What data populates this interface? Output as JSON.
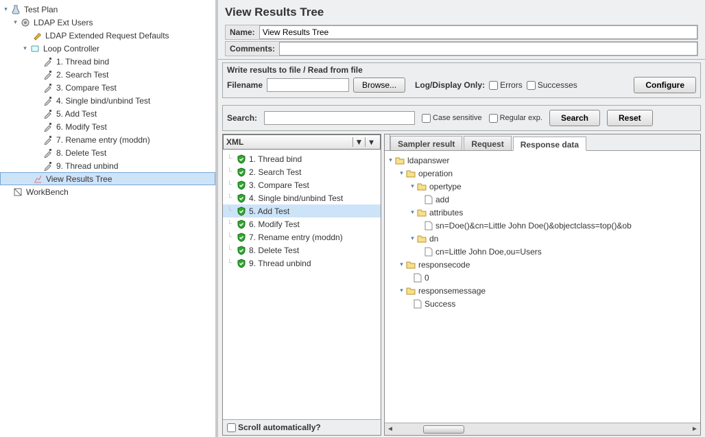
{
  "colors": {
    "select_bg": "#cde3f8",
    "border": "#a8a8a8",
    "panel_bg": "#eceef0",
    "shield_green": "#2faa2f"
  },
  "left_tree": {
    "root": "Test Plan",
    "ldap_ext": "LDAP Ext Users",
    "ldap_defaults": "LDAP Extended Request Defaults",
    "loop": "Loop Controller",
    "items": [
      "1. Thread bind",
      "2. Search Test",
      "3. Compare Test",
      "4. Single bind/unbind Test",
      "5. Add Test",
      "6. Modify Test",
      "7. Rename entry (moddn)",
      "8. Delete Test",
      "9. Thread unbind"
    ],
    "view_results": "View Results Tree",
    "workbench": "WorkBench"
  },
  "right": {
    "title": "View Results Tree",
    "name_label": "Name:",
    "name_value": "View Results Tree",
    "comments_label": "Comments:",
    "file_group_title": "Write results to file / Read from file",
    "filename_label": "Filename",
    "browse_btn": "Browse...",
    "log_display_label": "Log/Display Only:",
    "errors_chk": "Errors",
    "successes_chk": "Successes",
    "configure_btn": "Configure",
    "search_label": "Search:",
    "case_chk": "Case sensitive",
    "regex_chk": "Regular exp.",
    "search_btn": "Search",
    "reset_btn": "Reset",
    "combo_value": "XML",
    "results": [
      "1. Thread bind",
      "2. Search Test",
      "3. Compare Test",
      "4. Single bind/unbind Test",
      "5. Add Test",
      "6. Modify Test",
      "7. Rename entry (moddn)",
      "8. Delete Test",
      "9. Thread unbind"
    ],
    "results_selected_index": 4,
    "scroll_auto": "Scroll automatically?",
    "tabs": {
      "sampler": "Sampler result",
      "request": "Request",
      "response": "Response data"
    },
    "response_tree": {
      "root": "ldapanswer",
      "operation": "operation",
      "opertype": "opertype",
      "opertype_val": "add",
      "attributes": "attributes",
      "attributes_val": "sn=Doe()&cn=Little John Doe()&objectclass=top()&ob",
      "dn": "dn",
      "dn_val": "cn=Little John Doe,ou=Users",
      "responsecode": "responsecode",
      "responsecode_val": "0",
      "responsemessage": "responsemessage",
      "responsemessage_val": "Success"
    }
  }
}
